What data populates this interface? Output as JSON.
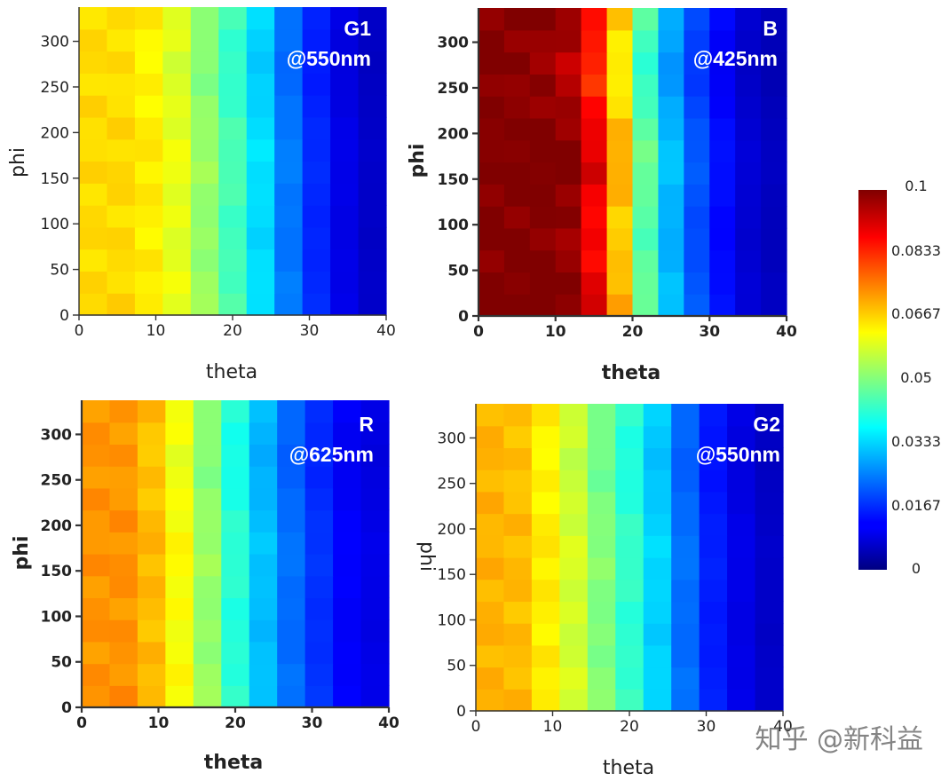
{
  "chart_data": [
    {
      "id": "G1",
      "type": "heatmap",
      "title": "G1",
      "subtitle": "@550nm",
      "xlabel": "theta",
      "ylabel": "phi",
      "xlim": [
        0,
        40
      ],
      "ylim": [
        0,
        337.5
      ],
      "xticks": [
        "0",
        "10",
        "20",
        "30",
        "40"
      ],
      "yticks": [
        "0",
        "50",
        "100",
        "150",
        "200",
        "250",
        "300"
      ],
      "bold_axes": false,
      "theta_profile": [
        0.066,
        0.066,
        0.064,
        0.06,
        0.052,
        0.044,
        0.034,
        0.024,
        0.016,
        0.01,
        0.007
      ],
      "phi_modulation": 0.08
    },
    {
      "id": "B",
      "type": "heatmap",
      "title": "B",
      "subtitle": "@425nm",
      "xlabel": "theta",
      "ylabel": "phi",
      "xlim": [
        0,
        40
      ],
      "ylim": [
        0,
        337.5
      ],
      "xticks": [
        "0",
        "10",
        "20",
        "30",
        "40"
      ],
      "yticks": [
        "0",
        "50",
        "100",
        "150",
        "200",
        "250",
        "300"
      ],
      "bold_axes": true,
      "theta_profile": [
        0.1,
        0.1,
        0.1,
        0.098,
        0.088,
        0.068,
        0.046,
        0.03,
        0.02,
        0.013,
        0.008,
        0.006
      ],
      "phi_modulation": 0.15
    },
    {
      "id": "R",
      "type": "heatmap",
      "title": "R",
      "subtitle": "@625nm",
      "xlabel": "theta",
      "ylabel": "phi",
      "xlim": [
        0,
        40
      ],
      "ylim": [
        0,
        337.5
      ],
      "xticks": [
        "0",
        "10",
        "20",
        "30",
        "40"
      ],
      "yticks": [
        "0",
        "50",
        "100",
        "150",
        "200",
        "250",
        "300"
      ],
      "bold_axes": true,
      "theta_profile": [
        0.073,
        0.073,
        0.069,
        0.062,
        0.052,
        0.041,
        0.031,
        0.023,
        0.017,
        0.012,
        0.01
      ],
      "phi_modulation": 0.08
    },
    {
      "id": "G2",
      "type": "heatmap",
      "title": "G2",
      "subtitle": "@550nm",
      "xlabel": "theta",
      "ylabel": "phi",
      "xlim": [
        0,
        40
      ],
      "ylim": [
        0,
        337.5
      ],
      "xticks": [
        "0",
        "10",
        "20",
        "30",
        "40"
      ],
      "yticks": [
        "0",
        "50",
        "100",
        "150",
        "200",
        "250",
        "300"
      ],
      "bold_axes": false,
      "theta_profile": [
        0.07,
        0.069,
        0.064,
        0.058,
        0.05,
        0.042,
        0.033,
        0.023,
        0.015,
        0.01,
        0.007
      ],
      "phi_modulation": 0.08
    }
  ],
  "colorbar": {
    "colormap": "jet",
    "min": 0,
    "max": 0.1,
    "labels": [
      "0.1",
      "0.0833",
      "0.0667",
      "0.05",
      "0.0333",
      "0.0167",
      "0"
    ]
  },
  "watermark": "知乎 @新科益"
}
